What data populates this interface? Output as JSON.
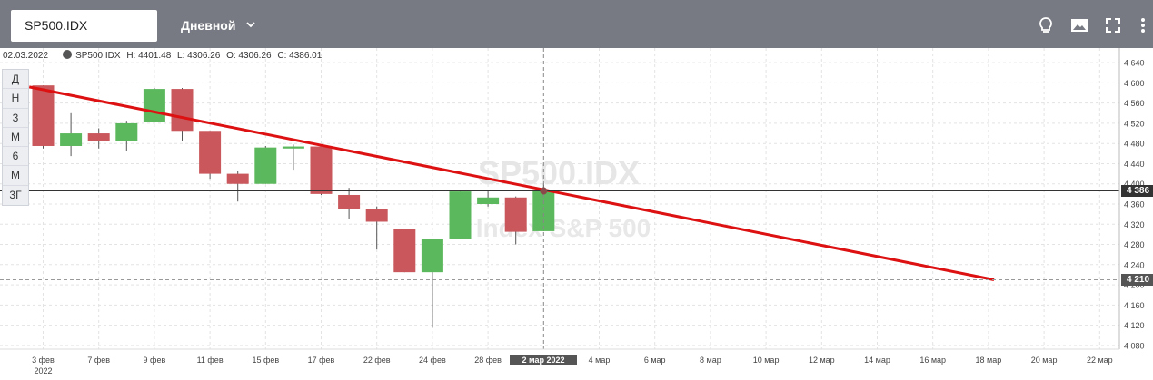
{
  "toolbar": {
    "symbol": "SP500.IDX",
    "interval": "Дневной",
    "icons": [
      "bulb-icon",
      "image-icon",
      "fullscreen-icon",
      "more-icon"
    ]
  },
  "info": {
    "date": "02.03.2022",
    "symbol": "SP500.IDX",
    "high": "H: 4401.48",
    "low": "L: 4306.26",
    "open": "O: 4306.26",
    "close": "C: 4386.01"
  },
  "period_buttons": [
    "Д",
    "Н",
    "3",
    "М",
    "6",
    "М",
    "3Г"
  ],
  "watermark": {
    "title": "SP500.IDX",
    "subtitle": "Index S&P 500"
  },
  "crosshair": {
    "date_label": "2 мар 2022",
    "price_label": "4 386",
    "price": 4386
  },
  "trendline_end_label": "4 210",
  "colors": {
    "up": "#5cb85c",
    "down": "#c9575b",
    "trendline": "#dd1111",
    "topbar": "#777a82"
  },
  "chart_data": {
    "type": "candlestick",
    "ylim": [
      4060,
      4660
    ],
    "y_ticks": [
      4080,
      4120,
      4160,
      4200,
      4240,
      4280,
      4320,
      4360,
      4400,
      4440,
      4480,
      4520,
      4560,
      4600,
      4640
    ],
    "y_tick_labels": [
      "4 080",
      "4 120",
      "4 160",
      "4 200",
      "4 240",
      "4 280",
      "4 320",
      "4 360",
      "4 400",
      "4 440",
      "4 480",
      "4 520",
      "4 560",
      "4 600",
      "4 640"
    ],
    "x_ticks": [
      {
        "label": "3 фев",
        "sub": "2022",
        "i": 0
      },
      {
        "label": "7 фев",
        "i": 2
      },
      {
        "label": "9 фев",
        "i": 4
      },
      {
        "label": "11 фев",
        "i": 6
      },
      {
        "label": "15 фев",
        "i": 8
      },
      {
        "label": "17 фев",
        "i": 10
      },
      {
        "label": "22 фев",
        "i": 12
      },
      {
        "label": "24 фев",
        "i": 14
      },
      {
        "label": "28 фев",
        "i": 16
      },
      {
        "label": "4 мар",
        "i": 20
      },
      {
        "label": "6 мар",
        "i": 22
      },
      {
        "label": "8 мар",
        "i": 24
      },
      {
        "label": "10 мар",
        "i": 26
      },
      {
        "label": "12 мар",
        "i": 28
      },
      {
        "label": "14 мар",
        "i": 30
      },
      {
        "label": "16 мар",
        "i": 32
      },
      {
        "label": "18 мар",
        "i": 34
      },
      {
        "label": "20 мар",
        "i": 36
      },
      {
        "label": "22 мар",
        "i": 38
      }
    ],
    "candles": [
      {
        "o": 4595,
        "h": 4595,
        "l": 4470,
        "c": 4475
      },
      {
        "o": 4475,
        "h": 4540,
        "l": 4455,
        "c": 4500
      },
      {
        "o": 4500,
        "h": 4510,
        "l": 4470,
        "c": 4485
      },
      {
        "o": 4485,
        "h": 4525,
        "l": 4465,
        "c": 4520
      },
      {
        "o": 4522,
        "h": 4590,
        "l": 4522,
        "c": 4588
      },
      {
        "o": 4588,
        "h": 4590,
        "l": 4485,
        "c": 4505
      },
      {
        "o": 4505,
        "h": 4505,
        "l": 4410,
        "c": 4420
      },
      {
        "o": 4420,
        "h": 4425,
        "l": 4365,
        "c": 4400
      },
      {
        "o": 4400,
        "h": 4475,
        "l": 4400,
        "c": 4472
      },
      {
        "o": 4470,
        "h": 4478,
        "l": 4428,
        "c": 4474
      },
      {
        "o": 4474,
        "h": 4478,
        "l": 4378,
        "c": 4380
      },
      {
        "o": 4378,
        "h": 4392,
        "l": 4330,
        "c": 4350
      },
      {
        "o": 4350,
        "h": 4355,
        "l": 4270,
        "c": 4325
      },
      {
        "o": 4310,
        "h": 4310,
        "l": 4225,
        "c": 4225
      },
      {
        "o": 4225,
        "h": 4290,
        "l": 4115,
        "c": 4290
      },
      {
        "o": 4290,
        "h": 4385,
        "l": 4290,
        "c": 4385
      },
      {
        "o": 4360,
        "h": 4385,
        "l": 4355,
        "c": 4373
      },
      {
        "o": 4373,
        "h": 4375,
        "l": 4280,
        "c": 4305
      },
      {
        "o": 4306.26,
        "h": 4401.48,
        "l": 4306.26,
        "c": 4386.01
      }
    ],
    "trendline": {
      "from": {
        "i": -0.5,
        "v": 4592
      },
      "to": {
        "i": 34.2,
        "v": 4210
      }
    },
    "grid": true
  }
}
